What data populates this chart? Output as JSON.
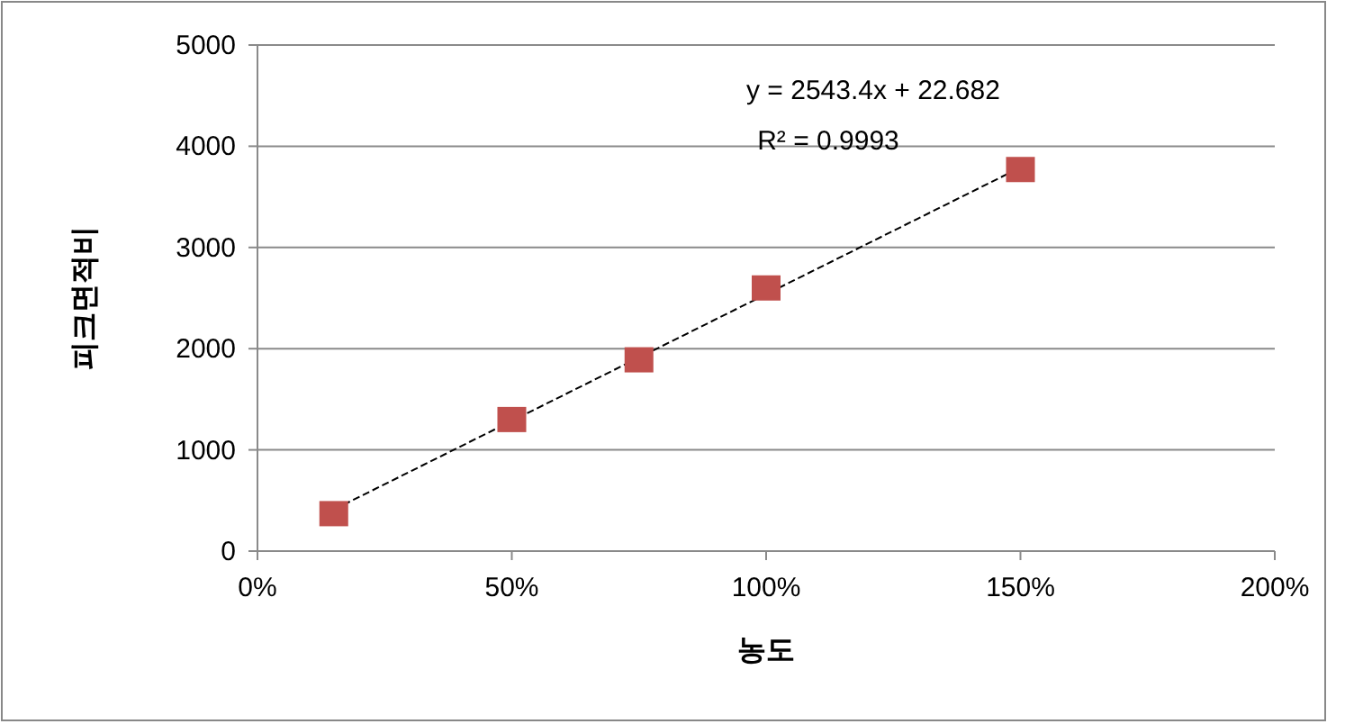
{
  "chart_data": {
    "type": "scatter",
    "xlabel": "농도",
    "ylabel": "피크면적비",
    "xlim": [
      0,
      200
    ],
    "ylim": [
      0,
      5000
    ],
    "xticks": [
      {
        "value": 0,
        "label": "0%"
      },
      {
        "value": 50,
        "label": "50%"
      },
      {
        "value": 100,
        "label": "100%"
      },
      {
        "value": 150,
        "label": "150%"
      },
      {
        "value": 200,
        "label": "200%"
      }
    ],
    "yticks": [
      0,
      1000,
      2000,
      3000,
      4000,
      5000
    ],
    "grid": "y",
    "series": [
      {
        "type": "line",
        "line_style": "dashed",
        "color": "#000000",
        "x": [
          15,
          150
        ],
        "values": [
          410,
          3790
        ],
        "marker": "none"
      },
      {
        "marker": "square",
        "color": "#c0504d",
        "x": [
          15,
          50,
          75,
          100,
          150
        ],
        "values": [
          370,
          1300,
          1890,
          2600,
          3770
        ]
      }
    ],
    "annotations": [
      "y = 2543.4x + 22.682",
      "R² = 0.9993"
    ]
  }
}
